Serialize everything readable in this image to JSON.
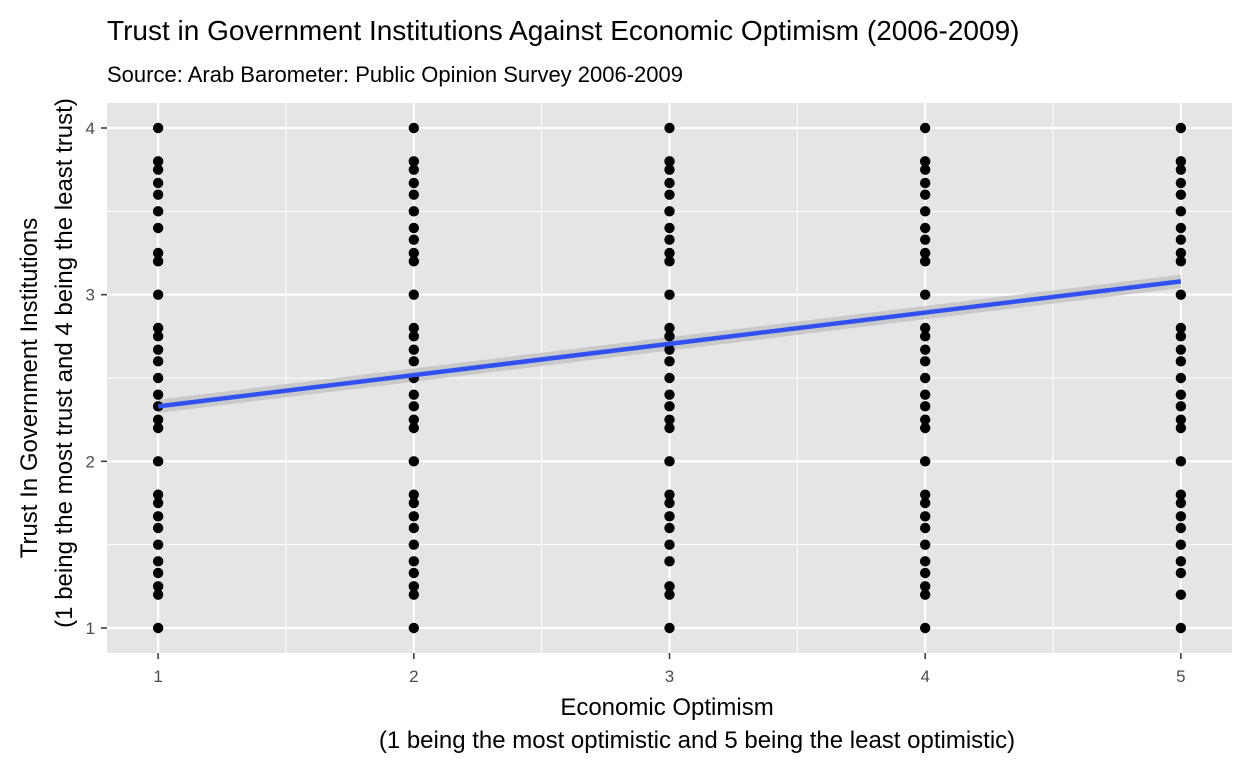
{
  "chart_data": {
    "type": "scatter",
    "title": "Trust in Government Institutions Against Economic Optimism (2006-2009)",
    "subtitle": "Source: Arab Barometer: Public Opinion Survey 2006-2009",
    "xlabel": [
      "Economic Optimism",
      "(1 being the most optimistic and 5 being the least optimistic)"
    ],
    "ylabel": [
      "Trust In Government Institutions",
      "(1 being the most trust and 4 being the least trust)"
    ],
    "xlim": [
      0.8,
      5.2
    ],
    "ylim": [
      0.85,
      4.15
    ],
    "x_ticks": [
      1,
      2,
      3,
      4,
      5
    ],
    "y_ticks": [
      1,
      2,
      3,
      4
    ],
    "grid": true,
    "points": [
      {
        "x": 1,
        "y": [
          1.0,
          1.2,
          1.25,
          1.33,
          1.4,
          1.5,
          1.6,
          1.67,
          1.75,
          1.8,
          2.0,
          2.2,
          2.25,
          2.33,
          2.4,
          2.5,
          2.6,
          2.67,
          2.75,
          2.8,
          3.0,
          3.2,
          3.25,
          3.4,
          3.5,
          3.6,
          3.67,
          3.75,
          3.8,
          4.0
        ]
      },
      {
        "x": 2,
        "y": [
          1.0,
          1.2,
          1.25,
          1.33,
          1.4,
          1.5,
          1.6,
          1.67,
          1.75,
          1.8,
          2.0,
          2.2,
          2.25,
          2.33,
          2.4,
          2.5,
          2.6,
          2.67,
          2.75,
          2.8,
          3.0,
          3.2,
          3.25,
          3.33,
          3.4,
          3.5,
          3.6,
          3.67,
          3.75,
          3.8,
          4.0
        ]
      },
      {
        "x": 3,
        "y": [
          1.0,
          1.2,
          1.25,
          1.4,
          1.5,
          1.6,
          1.67,
          1.75,
          1.8,
          2.0,
          2.2,
          2.25,
          2.33,
          2.4,
          2.5,
          2.6,
          2.67,
          2.75,
          2.8,
          3.0,
          3.2,
          3.25,
          3.33,
          3.4,
          3.5,
          3.6,
          3.67,
          3.75,
          3.8,
          4.0
        ]
      },
      {
        "x": 4,
        "y": [
          1.0,
          1.2,
          1.25,
          1.33,
          1.4,
          1.5,
          1.6,
          1.67,
          1.75,
          1.8,
          2.0,
          2.2,
          2.25,
          2.33,
          2.4,
          2.5,
          2.6,
          2.67,
          2.75,
          2.8,
          3.0,
          3.2,
          3.25,
          3.33,
          3.4,
          3.5,
          3.6,
          3.67,
          3.75,
          3.8,
          4.0
        ]
      },
      {
        "x": 5,
        "y": [
          1.0,
          1.2,
          1.33,
          1.4,
          1.5,
          1.6,
          1.67,
          1.75,
          1.8,
          2.0,
          2.2,
          2.25,
          2.33,
          2.4,
          2.5,
          2.6,
          2.67,
          2.75,
          2.8,
          3.0,
          3.2,
          3.25,
          3.33,
          3.4,
          3.5,
          3.6,
          3.67,
          3.75,
          3.8,
          4.0
        ]
      }
    ],
    "trend_line": {
      "x": [
        1,
        5
      ],
      "y": [
        2.33,
        3.08
      ],
      "ci_low": [
        2.29,
        3.04
      ],
      "ci_high": [
        2.37,
        3.12
      ]
    },
    "colors": {
      "panel": "#e5e5e5",
      "grid": "#ffffff",
      "point": "#000000",
      "line": "#3050f0",
      "ribbon": "#c4c4c4",
      "tick": "#333333"
    }
  }
}
